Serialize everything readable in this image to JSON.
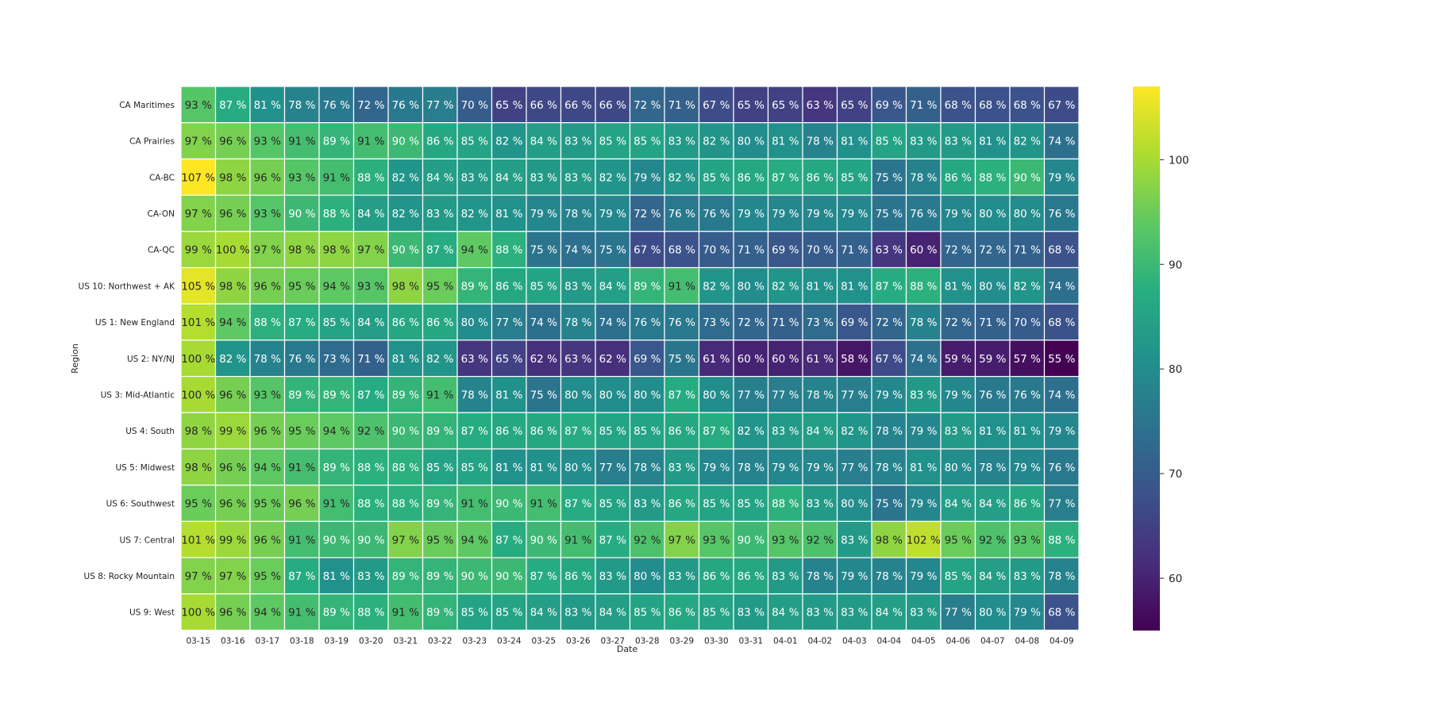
{
  "chart_data": {
    "type": "heatmap",
    "title": "",
    "xlabel": "Date",
    "ylabel": "Region",
    "value_suffix": " %",
    "colormap": "viridis",
    "grid_line_color": "#ffffff",
    "colorbar": {
      "vmin": 55,
      "vmax": 107,
      "ticks": [
        60,
        70,
        80,
        90,
        100
      ]
    },
    "x": [
      "03-15",
      "03-16",
      "03-17",
      "03-18",
      "03-19",
      "03-20",
      "03-21",
      "03-22",
      "03-23",
      "03-24",
      "03-25",
      "03-26",
      "03-27",
      "03-28",
      "03-29",
      "03-30",
      "03-31",
      "04-01",
      "04-02",
      "04-03",
      "04-04",
      "04-05",
      "04-06",
      "04-07",
      "04-08",
      "04-09"
    ],
    "y": [
      "CA Maritimes",
      "CA Prairies",
      "CA-BC",
      "CA-ON",
      "CA-QC",
      "US 10: Northwest + AK",
      "US 1: New England",
      "US 2: NY/NJ",
      "US 3: Mid-Atlantic",
      "US 4: South",
      "US 5: Midwest",
      "US 6: Southwest",
      "US 7: Central",
      "US 8: Rocky Mountain",
      "US 9: West"
    ],
    "values": [
      [
        93,
        87,
        81,
        78,
        76,
        72,
        76,
        77,
        70,
        65,
        66,
        66,
        66,
        72,
        71,
        67,
        65,
        65,
        63,
        65,
        69,
        71,
        68,
        68,
        68,
        67
      ],
      [
        97,
        96,
        93,
        91,
        89,
        91,
        90,
        86,
        85,
        82,
        84,
        83,
        85,
        85,
        83,
        82,
        80,
        81,
        78,
        81,
        85,
        83,
        83,
        81,
        82,
        74
      ],
      [
        107,
        98,
        96,
        93,
        91,
        88,
        82,
        84,
        83,
        84,
        83,
        83,
        82,
        79,
        82,
        85,
        86,
        87,
        86,
        85,
        75,
        78,
        86,
        88,
        90,
        79
      ],
      [
        97,
        96,
        93,
        90,
        88,
        84,
        82,
        83,
        82,
        81,
        79,
        78,
        79,
        72,
        76,
        76,
        79,
        79,
        79,
        79,
        75,
        76,
        79,
        80,
        80,
        76
      ],
      [
        99,
        100,
        97,
        98,
        98,
        97,
        90,
        87,
        94,
        88,
        75,
        74,
        75,
        67,
        68,
        70,
        71,
        69,
        70,
        71,
        63,
        60,
        72,
        72,
        71,
        68
      ],
      [
        105,
        98,
        96,
        95,
        94,
        93,
        98,
        95,
        89,
        86,
        85,
        83,
        84,
        89,
        91,
        82,
        80,
        82,
        81,
        81,
        87,
        88,
        81,
        80,
        82,
        74
      ],
      [
        101,
        94,
        88,
        87,
        85,
        84,
        86,
        86,
        80,
        77,
        74,
        78,
        74,
        76,
        76,
        73,
        72,
        71,
        73,
        69,
        72,
        78,
        72,
        71,
        70,
        68
      ],
      [
        100,
        82,
        78,
        76,
        73,
        71,
        81,
        82,
        63,
        65,
        62,
        63,
        62,
        69,
        75,
        61,
        60,
        60,
        61,
        58,
        67,
        74,
        59,
        59,
        57,
        55
      ],
      [
        100,
        96,
        93,
        89,
        89,
        87,
        89,
        91,
        78,
        81,
        75,
        80,
        80,
        80,
        87,
        80,
        77,
        77,
        78,
        77,
        79,
        83,
        79,
        76,
        76,
        74
      ],
      [
        98,
        99,
        96,
        95,
        94,
        92,
        90,
        89,
        87,
        86,
        86,
        87,
        85,
        85,
        86,
        87,
        82,
        83,
        84,
        82,
        78,
        79,
        83,
        81,
        81,
        79
      ],
      [
        98,
        96,
        94,
        91,
        89,
        88,
        88,
        85,
        85,
        81,
        81,
        80,
        77,
        78,
        83,
        79,
        78,
        79,
        79,
        77,
        78,
        81,
        80,
        78,
        79,
        76
      ],
      [
        95,
        96,
        95,
        96,
        91,
        88,
        88,
        89,
        91,
        90,
        91,
        87,
        85,
        83,
        86,
        85,
        85,
        88,
        83,
        80,
        75,
        79,
        84,
        84,
        86,
        77
      ],
      [
        101,
        99,
        96,
        91,
        90,
        90,
        97,
        95,
        94,
        87,
        90,
        91,
        87,
        92,
        97,
        93,
        90,
        93,
        92,
        83,
        98,
        102,
        95,
        92,
        93,
        88
      ],
      [
        97,
        97,
        95,
        87,
        81,
        83,
        89,
        89,
        90,
        90,
        87,
        86,
        83,
        80,
        83,
        86,
        86,
        83,
        78,
        79,
        78,
        79,
        85,
        84,
        83,
        78
      ],
      [
        100,
        96,
        94,
        91,
        89,
        88,
        91,
        89,
        85,
        85,
        84,
        83,
        84,
        85,
        86,
        85,
        83,
        84,
        83,
        83,
        84,
        83,
        77,
        80,
        79,
        68
      ]
    ]
  }
}
